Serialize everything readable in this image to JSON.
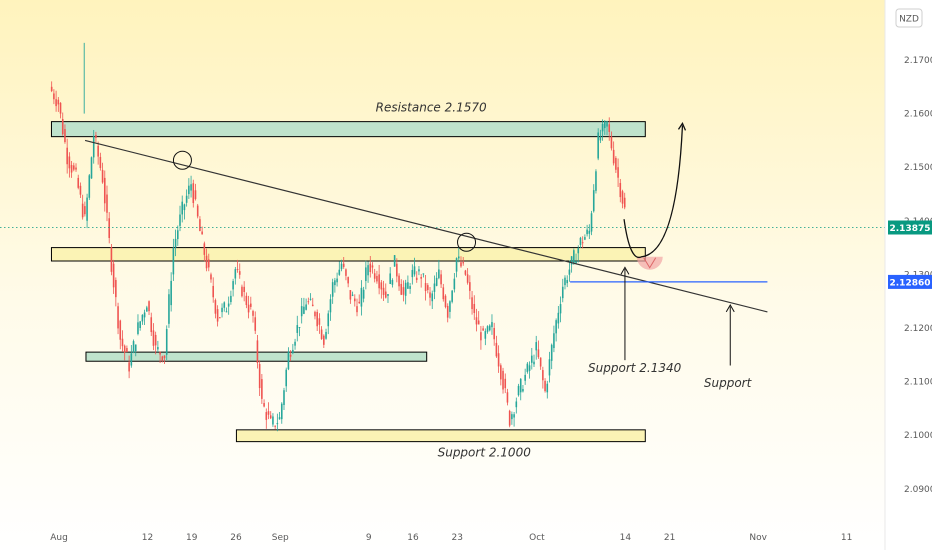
{
  "chart_data": {
    "type": "candlestick",
    "currency": "NZD",
    "y_ticks": [
      "2.17000",
      "2.16000",
      "2.15000",
      "2.14000",
      "2.13000",
      "2.12000",
      "2.11000",
      "2.10000",
      "2.09000"
    ],
    "ylim": [
      2.0855,
      2.1825
    ],
    "x_ticks": [
      {
        "label": "Aug",
        "idx": 0
      },
      {
        "label": "12",
        "idx": 10
      },
      {
        "label": "19",
        "idx": 15
      },
      {
        "label": "26",
        "idx": 20
      },
      {
        "label": "Sep",
        "idx": 25
      },
      {
        "label": "9",
        "idx": 35
      },
      {
        "label": "16",
        "idx": 40
      },
      {
        "label": "23",
        "idx": 45
      },
      {
        "label": "Oct",
        "idx": 54
      },
      {
        "label": "14",
        "idx": 64
      },
      {
        "label": "21",
        "idx": 69
      },
      {
        "label": "Nov",
        "idx": 79
      },
      {
        "label": "11",
        "idx": 89
      }
    ],
    "close_series": [
      2.162,
      2.152,
      2.148,
      2.14,
      2.156,
      2.148,
      2.132,
      2.118,
      2.113,
      2.12,
      2.125,
      2.116,
      2.115,
      2.135,
      2.142,
      2.147,
      2.138,
      2.13,
      2.122,
      2.124,
      2.131,
      2.126,
      2.122,
      2.106,
      2.102,
      2.103,
      2.115,
      2.12,
      2.125,
      2.123,
      2.118,
      2.128,
      2.132,
      2.126,
      2.124,
      2.132,
      2.13,
      2.126,
      2.132,
      2.126,
      2.13,
      2.13,
      2.125,
      2.13,
      2.123,
      2.133,
      2.13,
      2.122,
      2.118,
      2.12,
      2.112,
      2.103,
      2.108,
      2.112,
      2.116,
      2.108,
      2.119,
      2.128,
      2.132,
      2.136,
      2.138,
      2.155,
      2.158,
      2.15,
      2.142
    ],
    "current_price": "2.13875",
    "blue_level": "2.12860",
    "zones": [
      {
        "label": "Resistance 2.1570",
        "low": 2.1557,
        "high": 2.1585,
        "idx_from": -0.4,
        "idx_to": 66.7,
        "color": "#bfe3cc"
      },
      {
        "label": "",
        "low": 2.1325,
        "high": 2.135,
        "idx_from": -0.4,
        "idx_to": 66.7,
        "color": "#fbf3b5"
      },
      {
        "label": "",
        "low": 2.1138,
        "high": 2.1155,
        "idx_from": 3.5,
        "idx_to": 42.0,
        "color": "#bfe3cc"
      },
      {
        "label": "Support 2.1000",
        "low": 2.0988,
        "high": 2.101,
        "idx_from": 20.5,
        "idx_to": 66.7,
        "color": "#fbf3b5"
      }
    ],
    "annotations": [
      "Support 2.1340",
      "Support"
    ],
    "colors": {
      "up": "#26a69a",
      "down": "#ef5350",
      "trendline": "#333333",
      "blue": "#2962ff",
      "current": "#089981"
    }
  }
}
